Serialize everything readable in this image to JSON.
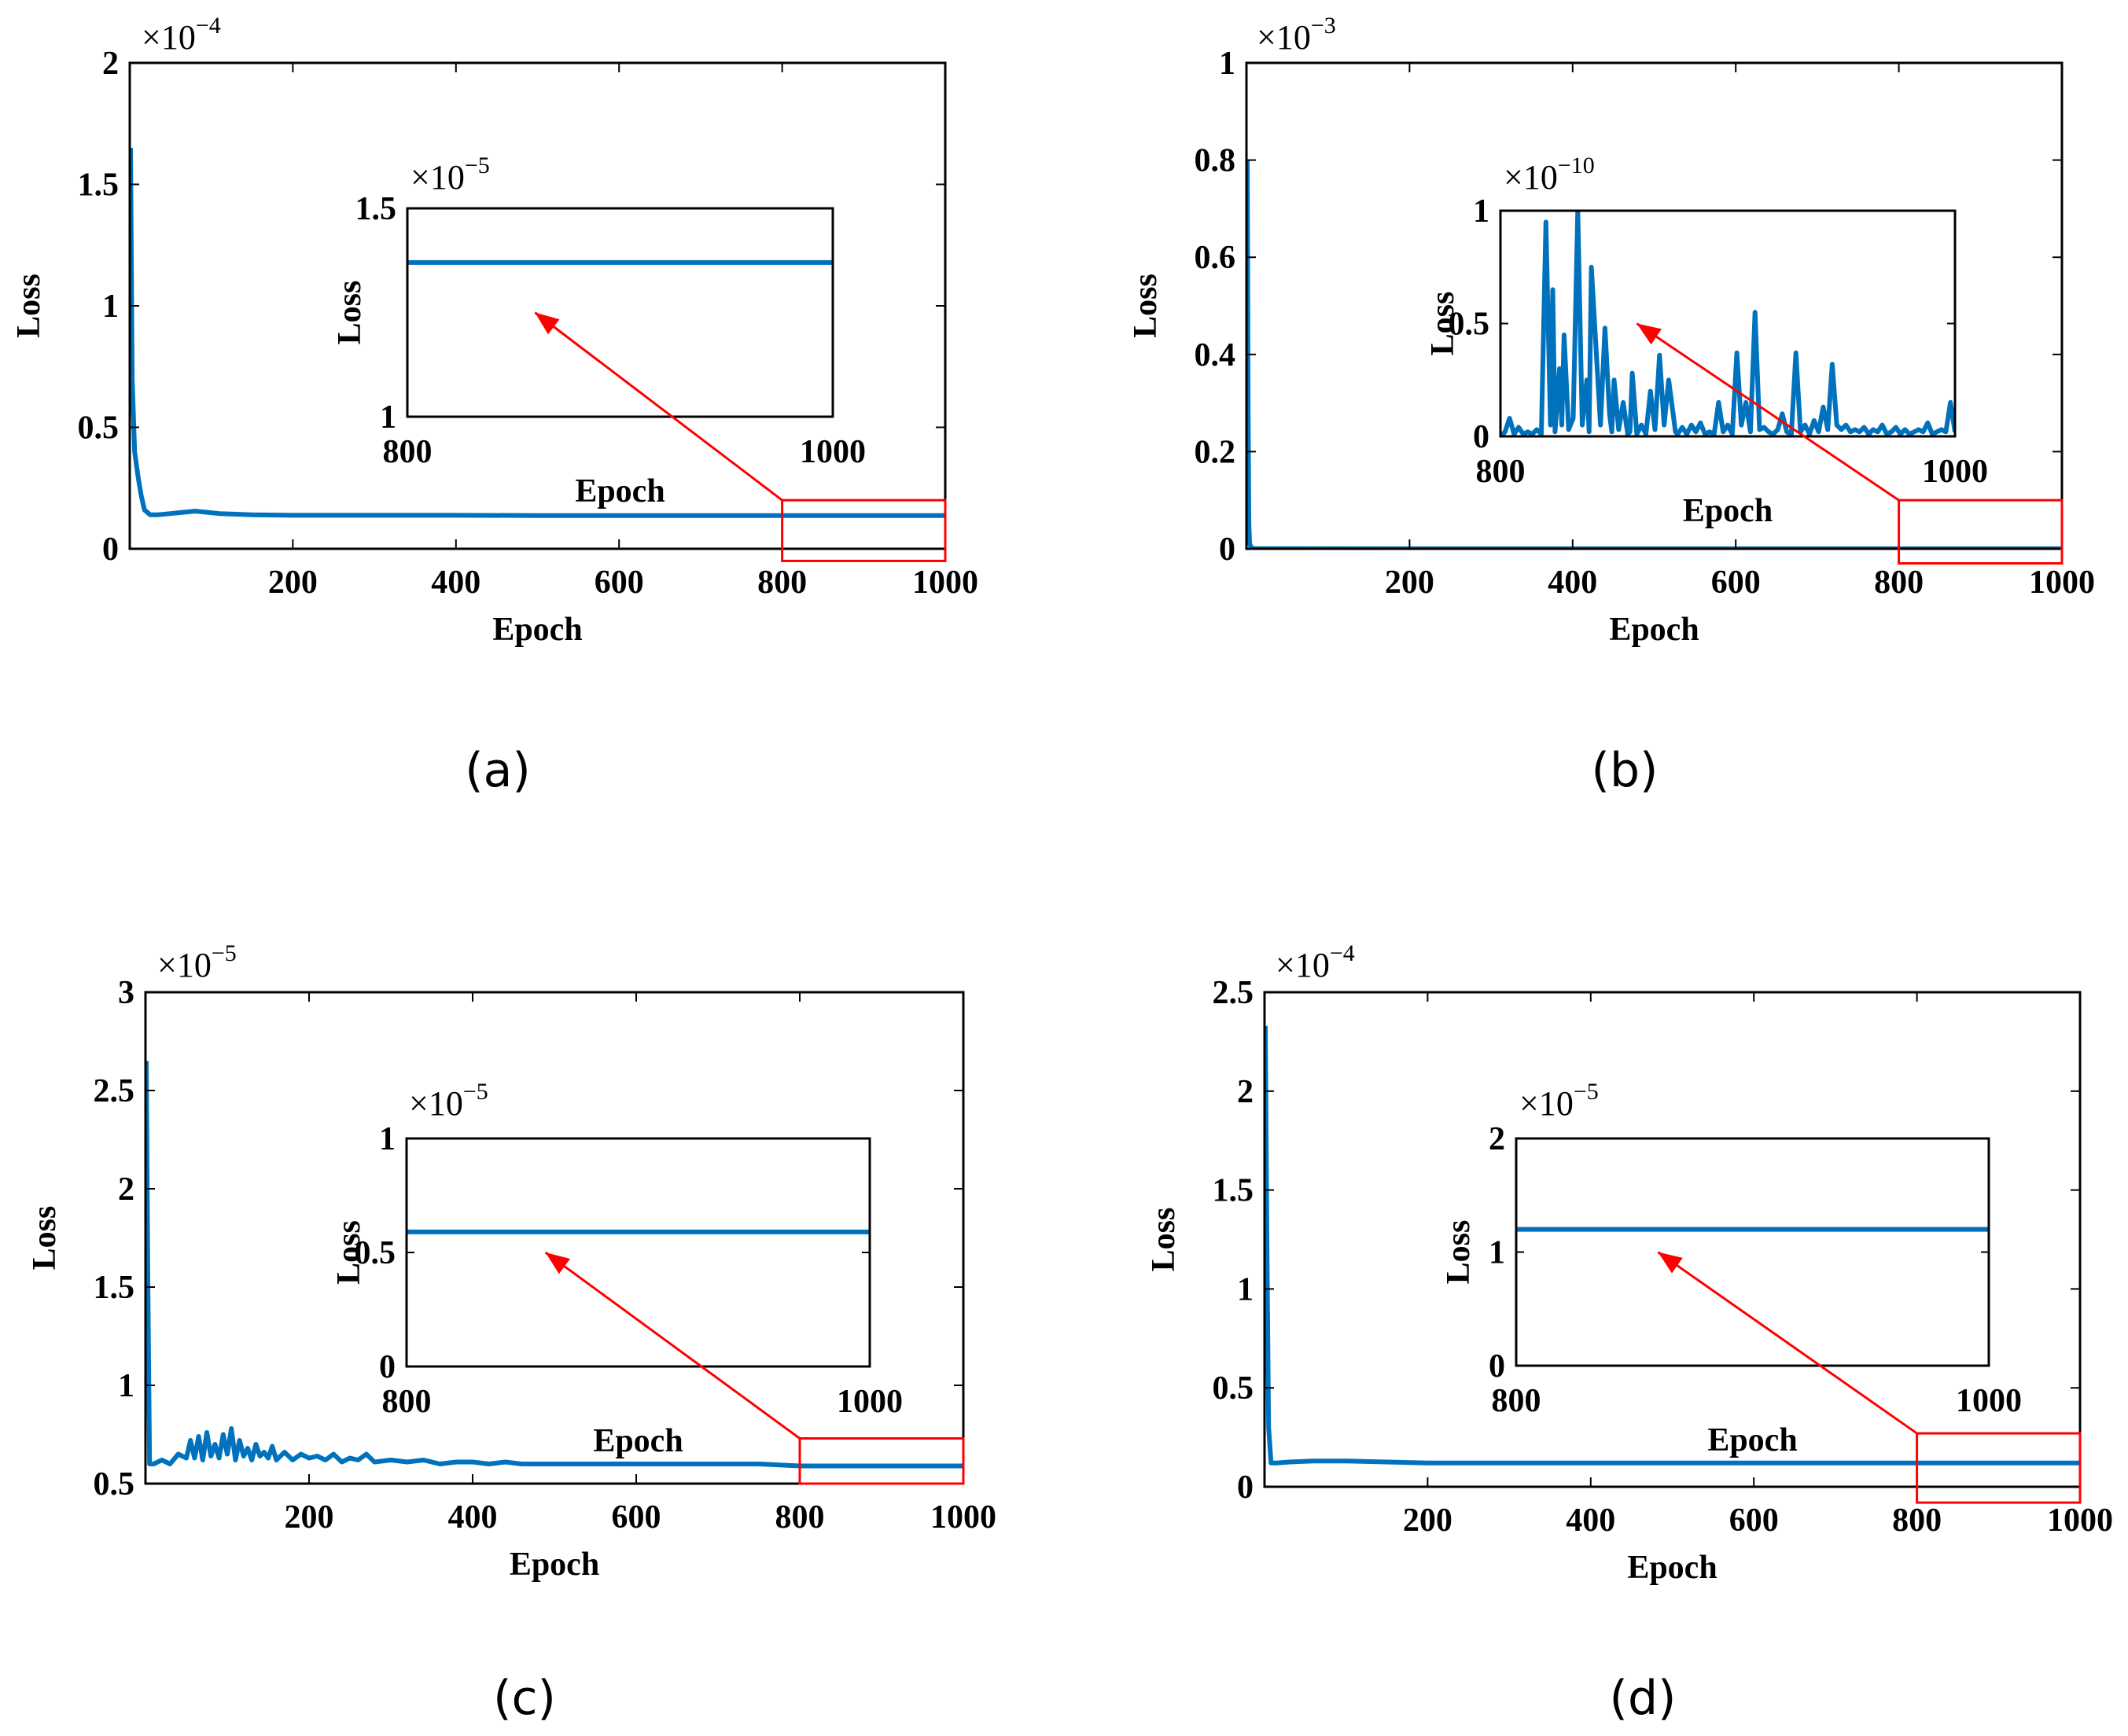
{
  "colors": {
    "series": "#0072BD",
    "highlight": "#FF0000",
    "axis": "#000000"
  },
  "chart_data": [
    {
      "panel": "a",
      "caption": "(a)",
      "type": "line",
      "xlabel": "Epoch",
      "ylabel": "Loss",
      "xlim": [
        0,
        1000
      ],
      "ylim": [
        0,
        2
      ],
      "xticks": [
        200,
        400,
        600,
        800,
        1000
      ],
      "xtick_labels": [
        "200",
        "400",
        "600",
        "800",
        "1000"
      ],
      "yticks": [
        0,
        0.5,
        1,
        1.5,
        2
      ],
      "ytick_labels": [
        "0",
        "0.5",
        "1",
        "1.5",
        "2"
      ],
      "exponent": {
        "base": "×10",
        "power": "−4"
      },
      "series": [
        {
          "name": "Loss",
          "x": [
            1,
            3,
            6,
            10,
            14,
            18,
            25,
            35,
            50,
            65,
            80,
            95,
            110,
            150,
            200,
            300,
            400,
            500,
            600,
            700,
            800,
            900,
            1000
          ],
          "y": [
            1.65,
            0.7,
            0.4,
            0.3,
            0.22,
            0.16,
            0.14,
            0.14,
            0.145,
            0.15,
            0.155,
            0.15,
            0.145,
            0.14,
            0.138,
            0.138,
            0.138,
            0.137,
            0.137,
            0.137,
            0.137,
            0.137,
            0.137
          ]
        }
      ],
      "zoom_box": {
        "x": [
          800,
          1000
        ],
        "y": [
          -0.05,
          0.2
        ]
      },
      "inset": {
        "xlabel": "Epoch",
        "ylabel": "Loss",
        "xlim": [
          800,
          1000
        ],
        "ylim": [
          1,
          1.5
        ],
        "xticks": [
          800,
          1000
        ],
        "xtick_labels": [
          "800",
          "1000"
        ],
        "yticks": [
          1,
          1.5
        ],
        "ytick_labels": [
          "1",
          "1.5"
        ],
        "exponent": {
          "base": "×10",
          "power": "−5"
        },
        "series": [
          {
            "name": "Loss",
            "x": [
              800,
              1000
            ],
            "y": [
              1.37,
              1.37
            ]
          }
        ]
      }
    },
    {
      "panel": "b",
      "caption": "(b)",
      "type": "line",
      "xlabel": "Epoch",
      "ylabel": "Loss",
      "xlim": [
        0,
        1000
      ],
      "ylim": [
        0,
        1
      ],
      "xticks": [
        200,
        400,
        600,
        800,
        1000
      ],
      "xtick_labels": [
        "200",
        "400",
        "600",
        "800",
        "1000"
      ],
      "yticks": [
        0,
        0.2,
        0.4,
        0.6,
        0.8,
        1
      ],
      "ytick_labels": [
        "0",
        "0.2",
        "0.4",
        "0.6",
        "0.8",
        "1"
      ],
      "exponent": {
        "base": "×10",
        "power": "−3"
      },
      "series": [
        {
          "name": "Loss",
          "x": [
            1,
            2,
            3,
            4,
            6,
            10,
            50,
            200,
            400,
            600,
            800,
            1000
          ],
          "y": [
            0.8,
            0.3,
            0.05,
            0.01,
            0.002,
            0.0005,
            0.0001,
            0,
            0,
            0,
            0,
            0
          ]
        }
      ],
      "zoom_box": {
        "x": [
          800,
          1000
        ],
        "y": [
          -0.03,
          0.1
        ]
      },
      "inset": {
        "xlabel": "Epoch",
        "ylabel": "Loss",
        "xlim": [
          800,
          1000
        ],
        "ylim": [
          0,
          1
        ],
        "xticks": [
          800,
          1000
        ],
        "xtick_labels": [
          "800",
          "1000"
        ],
        "yticks": [
          0,
          0.5,
          1
        ],
        "ytick_labels": [
          "0",
          "0.5",
          "1"
        ],
        "exponent": {
          "base": "×10",
          "power": "−10"
        },
        "series": [
          {
            "name": "Loss",
            "x": [
              800,
              802,
              804,
              806,
              808,
              810,
              812,
              814,
              816,
              818,
              820,
              822,
              823,
              824,
              826,
              827,
              828,
              830,
              832,
              834,
              836,
              838,
              839,
              840,
              842,
              844,
              846,
              848,
              849,
              850,
              852,
              854,
              856,
              857,
              858,
              860,
              862,
              864,
              866,
              868,
              870,
              872,
              874,
              876,
              877,
              878,
              880,
              882,
              884,
              886,
              888,
              890,
              892,
              894,
              896,
              898,
              900,
              902,
              904,
              906,
              908,
              910,
              912,
              914,
              916,
              918,
              920,
              922,
              924,
              926,
              928,
              930,
              932,
              934,
              936,
              938,
              940,
              942,
              944,
              946,
              948,
              950,
              952,
              954,
              956,
              958,
              960,
              962,
              964,
              966,
              968,
              970,
              972,
              974,
              976,
              978,
              980,
              982,
              984,
              986,
              988,
              990,
              992,
              994,
              996,
              998,
              1000
            ],
            "y": [
              0,
              0.02,
              0.08,
              0.01,
              0.04,
              0.01,
              0.02,
              0.01,
              0.03,
              0.01,
              0.95,
              0.05,
              0.65,
              0.02,
              0.3,
              0.05,
              0.45,
              0.03,
              0.08,
              1.0,
              0.05,
              0.25,
              0.02,
              0.75,
              0.4,
              0.05,
              0.48,
              0.1,
              0.02,
              0.25,
              0.03,
              0.15,
              0.01,
              0.02,
              0.28,
              0.01,
              0.05,
              0.01,
              0.2,
              0.03,
              0.36,
              0.05,
              0.25,
              0.1,
              0.02,
              0.01,
              0.04,
              0.01,
              0.05,
              0.02,
              0.06,
              0.01,
              0.02,
              0.01,
              0.15,
              0.02,
              0.05,
              0.01,
              0.37,
              0.05,
              0.15,
              0.02,
              0.55,
              0.03,
              0.04,
              0.02,
              0.01,
              0.03,
              0.1,
              0.02,
              0.01,
              0.37,
              0.02,
              0.05,
              0.01,
              0.07,
              0.02,
              0.13,
              0.03,
              0.32,
              0.05,
              0.03,
              0.05,
              0.02,
              0.03,
              0.02,
              0.04,
              0.01,
              0.03,
              0.02,
              0.05,
              0.01,
              0.02,
              0.04,
              0.01,
              0.03,
              0.01,
              0.02,
              0.03,
              0.02,
              0.06,
              0.01,
              0.02,
              0.03,
              0.02,
              0.15,
              0.02
            ]
          }
        ]
      }
    },
    {
      "panel": "c",
      "caption": "(c)",
      "type": "line",
      "xlabel": "Epoch",
      "ylabel": "Loss",
      "xlim": [
        0,
        1000
      ],
      "ylim": [
        0.5,
        3
      ],
      "xticks": [
        200,
        400,
        600,
        800,
        1000
      ],
      "xtick_labels": [
        "200",
        "400",
        "600",
        "800",
        "1000"
      ],
      "yticks": [
        0.5,
        1,
        1.5,
        2,
        2.5,
        3
      ],
      "ytick_labels": [
        "0.5",
        "1",
        "1.5",
        "2",
        "2.5",
        "3"
      ],
      "exponent": {
        "base": "×10",
        "power": "−5"
      },
      "series": [
        {
          "name": "Loss",
          "x": [
            1,
            3,
            5,
            10,
            20,
            30,
            40,
            50,
            55,
            60,
            65,
            70,
            75,
            80,
            85,
            90,
            95,
            100,
            105,
            110,
            115,
            120,
            125,
            130,
            135,
            140,
            145,
            150,
            155,
            160,
            170,
            180,
            190,
            200,
            210,
            220,
            230,
            240,
            250,
            260,
            270,
            280,
            300,
            320,
            340,
            360,
            380,
            400,
            420,
            440,
            460,
            480,
            500,
            550,
            600,
            650,
            700,
            750,
            800,
            850,
            900,
            950,
            1000
          ],
          "y": [
            2.65,
            1.5,
            0.6,
            0.6,
            0.62,
            0.6,
            0.65,
            0.63,
            0.72,
            0.63,
            0.74,
            0.62,
            0.76,
            0.64,
            0.7,
            0.63,
            0.75,
            0.65,
            0.78,
            0.62,
            0.72,
            0.64,
            0.68,
            0.62,
            0.7,
            0.64,
            0.66,
            0.63,
            0.69,
            0.62,
            0.66,
            0.62,
            0.65,
            0.63,
            0.64,
            0.62,
            0.65,
            0.61,
            0.63,
            0.62,
            0.65,
            0.61,
            0.62,
            0.61,
            0.62,
            0.6,
            0.61,
            0.61,
            0.6,
            0.61,
            0.6,
            0.6,
            0.6,
            0.6,
            0.6,
            0.6,
            0.6,
            0.6,
            0.59,
            0.59,
            0.59,
            0.59,
            0.59
          ]
        }
      ],
      "zoom_box": {
        "x": [
          800,
          1000
        ],
        "y": [
          0.5,
          0.73
        ]
      },
      "inset": {
        "xlabel": "Epoch",
        "ylabel": "Loss",
        "xlim": [
          800,
          1000
        ],
        "ylim": [
          0,
          1
        ],
        "xticks": [
          800,
          1000
        ],
        "xtick_labels": [
          "800",
          "1000"
        ],
        "yticks": [
          0,
          0.5,
          1
        ],
        "ytick_labels": [
          "0",
          "0.5",
          "1"
        ],
        "exponent": {
          "base": "×10",
          "power": "−5"
        },
        "series": [
          {
            "name": "Loss",
            "x": [
              800,
              1000
            ],
            "y": [
              0.59,
              0.59
            ]
          }
        ]
      }
    },
    {
      "panel": "d",
      "caption": "(d)",
      "type": "line",
      "xlabel": "Epoch",
      "ylabel": "Loss",
      "xlim": [
        0,
        1000
      ],
      "ylim": [
        0,
        2.5
      ],
      "xticks": [
        200,
        400,
        600,
        800,
        1000
      ],
      "xtick_labels": [
        "200",
        "400",
        "600",
        "800",
        "1000"
      ],
      "yticks": [
        0,
        0.5,
        1,
        1.5,
        2,
        2.5
      ],
      "ytick_labels": [
        "0",
        "0.5",
        "1",
        "1.5",
        "2",
        "2.5"
      ],
      "exponent": {
        "base": "×10",
        "power": "−4"
      },
      "series": [
        {
          "name": "Loss",
          "x": [
            1,
            3,
            5,
            8,
            15,
            30,
            60,
            100,
            150,
            200,
            300,
            400,
            500,
            600,
            700,
            800,
            900,
            1000
          ],
          "y": [
            2.33,
            1.2,
            0.3,
            0.12,
            0.12,
            0.125,
            0.13,
            0.13,
            0.125,
            0.12,
            0.12,
            0.12,
            0.12,
            0.12,
            0.12,
            0.12,
            0.12,
            0.12
          ]
        }
      ],
      "zoom_box": {
        "x": [
          800,
          1000
        ],
        "y": [
          -0.08,
          0.27
        ]
      },
      "inset": {
        "xlabel": "Epoch",
        "ylabel": "Loss",
        "xlim": [
          800,
          1000
        ],
        "ylim": [
          0,
          2
        ],
        "xticks": [
          800,
          1000
        ],
        "xtick_labels": [
          "800",
          "1000"
        ],
        "yticks": [
          0,
          1,
          2
        ],
        "ytick_labels": [
          "0",
          "1",
          "2"
        ],
        "exponent": {
          "base": "×10",
          "power": "−5"
        },
        "series": [
          {
            "name": "Loss",
            "x": [
              800,
              1000
            ],
            "y": [
              1.2,
              1.2
            ]
          }
        ]
      }
    }
  ]
}
